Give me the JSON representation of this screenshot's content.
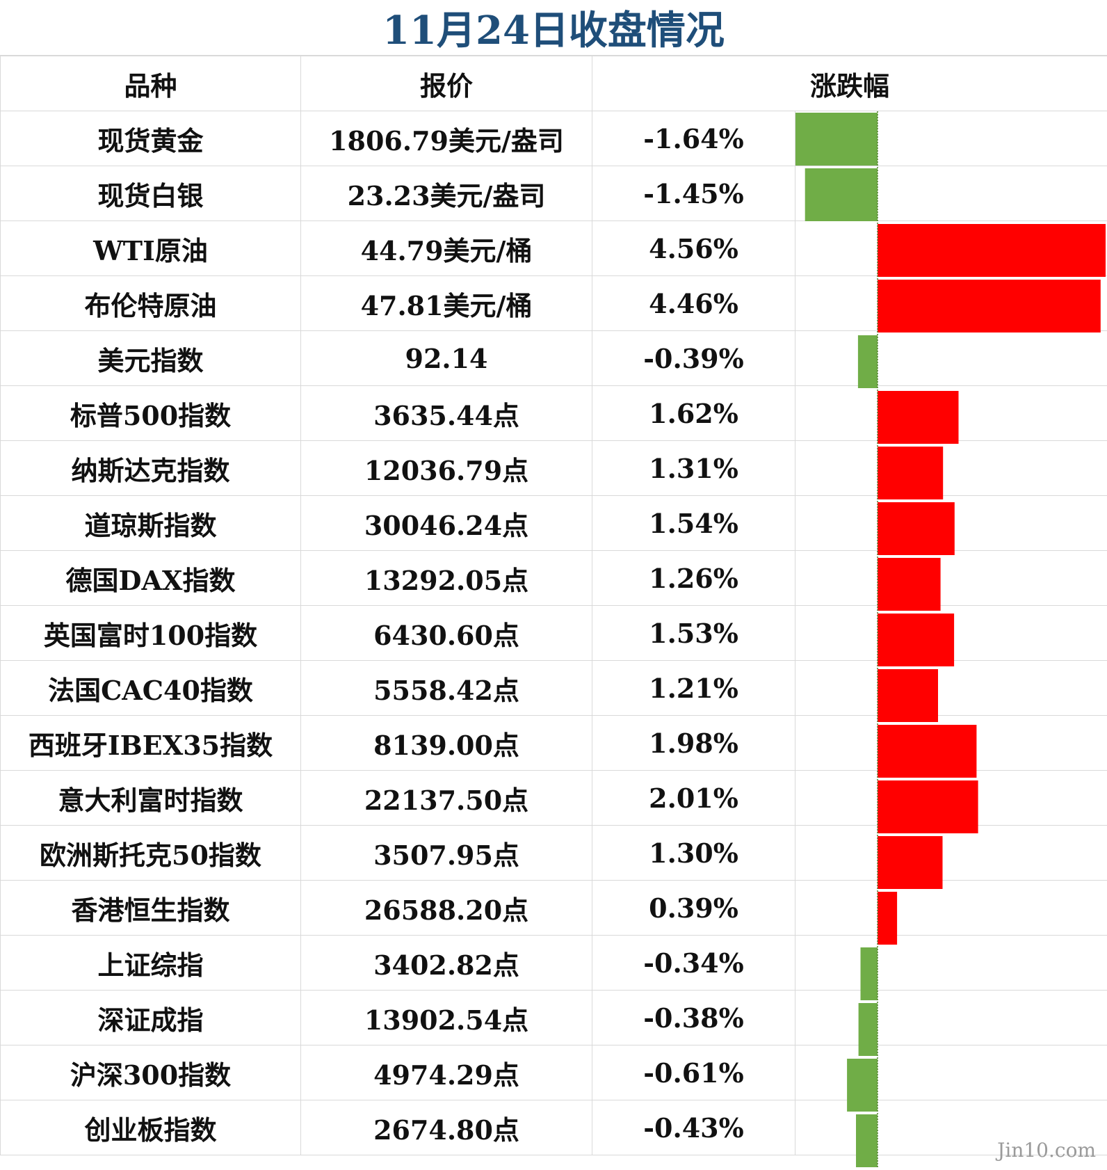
{
  "title": "11月24日收盘情况",
  "headers": {
    "name": "品种",
    "price": "报价",
    "change": "涨跌幅"
  },
  "rows": [
    {
      "name": "现货黄金",
      "price": "1806.79美元/盎司",
      "change_text": "-1.64%"
    },
    {
      "name": "现货白银",
      "price": "23.23美元/盎司",
      "change_text": "-1.45%"
    },
    {
      "name": "WTI原油",
      "price": "44.79美元/桶",
      "change_text": "4.56%"
    },
    {
      "name": "布伦特原油",
      "price": "47.81美元/桶",
      "change_text": "4.46%"
    },
    {
      "name": "美元指数",
      "price": "92.14",
      "change_text": "-0.39%"
    },
    {
      "name": "标普500指数",
      "price": "3635.44点",
      "change_text": "1.62%"
    },
    {
      "name": "纳斯达克指数",
      "price": "12036.79点",
      "change_text": "1.31%"
    },
    {
      "name": "道琼斯指数",
      "price": "30046.24点",
      "change_text": "1.54%"
    },
    {
      "name": "德国DAX指数",
      "price": "13292.05点",
      "change_text": "1.26%"
    },
    {
      "name": "英国富时100指数",
      "price": "6430.60点",
      "change_text": "1.53%"
    },
    {
      "name": "法国CAC40指数",
      "price": "5558.42点",
      "change_text": "1.21%"
    },
    {
      "name": "西班牙IBEX35指数",
      "price": "8139.00点",
      "change_text": "1.98%"
    },
    {
      "name": "意大利富时指数",
      "price": "22137.50点",
      "change_text": "2.01%"
    },
    {
      "name": "欧洲斯托克50指数",
      "price": "3507.95点",
      "change_text": "1.30%"
    },
    {
      "name": "香港恒生指数",
      "price": "26588.20点",
      "change_text": "0.39%"
    },
    {
      "name": "上证综指",
      "price": "3402.82点",
      "change_text": "-0.34%"
    },
    {
      "name": "深证成指",
      "price": "13902.54点",
      "change_text": "-0.38%"
    },
    {
      "name": "沪深300指数",
      "price": "4974.29点",
      "change_text": "-0.61%"
    },
    {
      "name": "创业板指数",
      "price": "2674.80点",
      "change_text": "-0.43%"
    }
  ],
  "watermark": "Jin10.com",
  "colors": {
    "title": "#1f4e79",
    "positive": "#ff0000",
    "negative": "#70ad47",
    "grid": "#d9d9d9"
  },
  "chart_data": {
    "type": "bar",
    "orientation": "horizontal",
    "categories": [
      "现货黄金",
      "现货白银",
      "WTI原油",
      "布伦特原油",
      "美元指数",
      "标普500指数",
      "纳斯达克指数",
      "道琼斯指数",
      "德国DAX指数",
      "英国富时100指数",
      "法国CAC40指数",
      "西班牙IBEX35指数",
      "意大利富时指数",
      "欧洲斯托克50指数",
      "香港恒生指数",
      "上证综指",
      "深证成指",
      "沪深300指数",
      "创业板指数"
    ],
    "values": [
      -1.64,
      -1.45,
      4.56,
      4.46,
      -0.39,
      1.62,
      1.31,
      1.54,
      1.26,
      1.53,
      1.21,
      1.98,
      2.01,
      1.3,
      0.39,
      -0.34,
      -0.38,
      -0.61,
      -0.43
    ],
    "unit": "%",
    "title": "11月24日收盘情况",
    "ylabel": "涨跌幅",
    "xlim": [
      -1.64,
      4.56
    ],
    "grid": false,
    "legend": "none"
  }
}
